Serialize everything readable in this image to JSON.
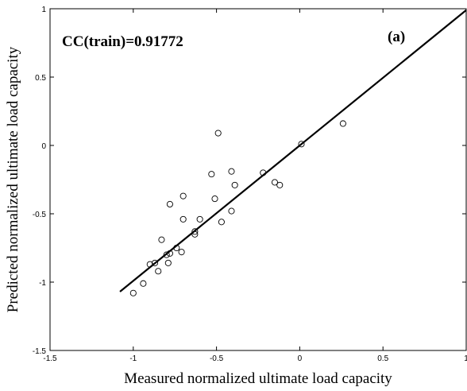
{
  "chart_data": {
    "type": "scatter",
    "xlabel": "Measured normalized ultimate load capacity",
    "ylabel": "Predicted normalized ultimate load capacity",
    "xlim": [
      -1.5,
      1
    ],
    "ylim": [
      -1.5,
      1
    ],
    "xticks": [
      -1.5,
      -1,
      -0.5,
      0,
      0.5,
      1
    ],
    "yticks": [
      -1.5,
      -1,
      -0.5,
      0,
      0.5,
      1
    ],
    "xtick_labels": [
      "-1.5",
      "-1",
      "-0.5",
      "0",
      "0.5",
      "1"
    ],
    "ytick_labels": [
      "-1.5",
      "-1",
      "-0.5",
      "0",
      "0.5",
      "1"
    ],
    "grid": false,
    "annotations": [
      "CC(train)=0.91772",
      "(a)"
    ],
    "series": [
      {
        "marker": "open-circle",
        "x": [
          -1.0,
          -0.94,
          -0.9,
          -0.87,
          -0.85,
          -0.83,
          -0.8,
          -0.79,
          -0.78,
          -0.78,
          -0.74,
          -0.7,
          -0.71,
          -0.7,
          -0.6,
          -0.63,
          -0.63,
          -0.53,
          -0.51,
          -0.49,
          -0.47,
          -0.41,
          -0.41,
          -0.39,
          -0.22,
          -0.15,
          -0.12,
          0.01,
          0.26
        ],
        "y": [
          -1.08,
          -1.01,
          -0.87,
          -0.86,
          -0.92,
          -0.69,
          -0.8,
          -0.86,
          -0.43,
          -0.79,
          -0.75,
          -0.37,
          -0.78,
          -0.54,
          -0.54,
          -0.63,
          -0.65,
          -0.21,
          -0.39,
          0.09,
          -0.56,
          -0.19,
          -0.48,
          -0.29,
          -0.2,
          -0.27,
          -0.29,
          0.01,
          0.16
        ]
      }
    ],
    "fit_line": {
      "x": [
        -1.08,
        1.0
      ],
      "y": [
        -1.07,
        0.99
      ]
    }
  }
}
